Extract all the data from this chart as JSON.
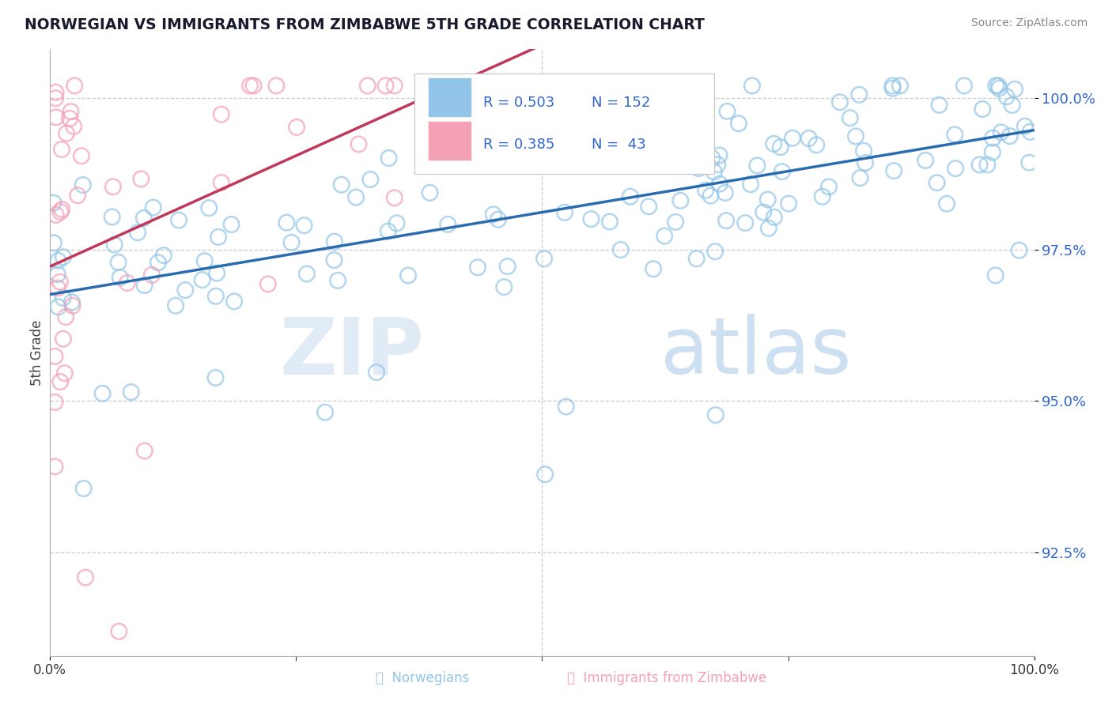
{
  "title": "NORWEGIAN VS IMMIGRANTS FROM ZIMBABWE 5TH GRADE CORRELATION CHART",
  "source": "Source: ZipAtlas.com",
  "ylabel": "5th Grade",
  "xmin": 0.0,
  "xmax": 1.0,
  "ymin": 0.908,
  "ymax": 1.008,
  "yticks": [
    0.925,
    0.95,
    0.975,
    1.0
  ],
  "ytick_labels": [
    "92.5%",
    "95.0%",
    "97.5%",
    "100.0%"
  ],
  "legend_r_norwegian": "R = 0.503",
  "legend_n_norwegian": "N = 152",
  "legend_r_zimbabwe": "R = 0.385",
  "legend_n_zimbabwe": "N =  43",
  "norwegian_color": "#92C5E8",
  "zimbabwe_color": "#F4A0B5",
  "trend_norwegian_color": "#2B6CB0",
  "trend_zimbabwe_color": "#C0385A",
  "watermark_zip": "ZIP",
  "watermark_atlas": "atlas"
}
